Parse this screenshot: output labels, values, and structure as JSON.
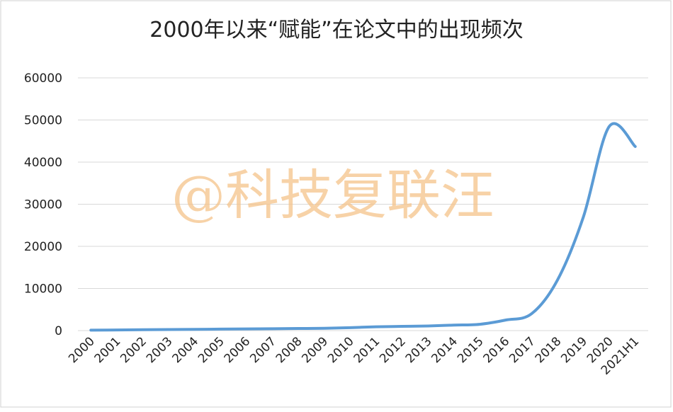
{
  "chart_data": {
    "type": "line",
    "title": "2000年以来“赋能”在论文中的出现频次",
    "watermark": "@科技复联汪",
    "categories": [
      "2000",
      "2001",
      "2002",
      "2003",
      "2004",
      "2005",
      "2006",
      "2007",
      "2008",
      "2009",
      "2010",
      "2011",
      "2012",
      "2013",
      "2014",
      "2015",
      "2016",
      "2017",
      "2018",
      "2019",
      "2020",
      "2021H1"
    ],
    "series": [
      {
        "name": "赋能",
        "color": "#5b9bd5",
        "values": [
          100,
          150,
          200,
          250,
          300,
          350,
          400,
          450,
          500,
          550,
          700,
          900,
          1000,
          1100,
          1300,
          1500,
          2500,
          4000,
          12000,
          27000,
          48500,
          43700
        ]
      }
    ],
    "ylim": [
      0,
      60000
    ],
    "yticks": [
      0,
      10000,
      20000,
      30000,
      40000,
      50000,
      60000
    ],
    "grid": true
  }
}
